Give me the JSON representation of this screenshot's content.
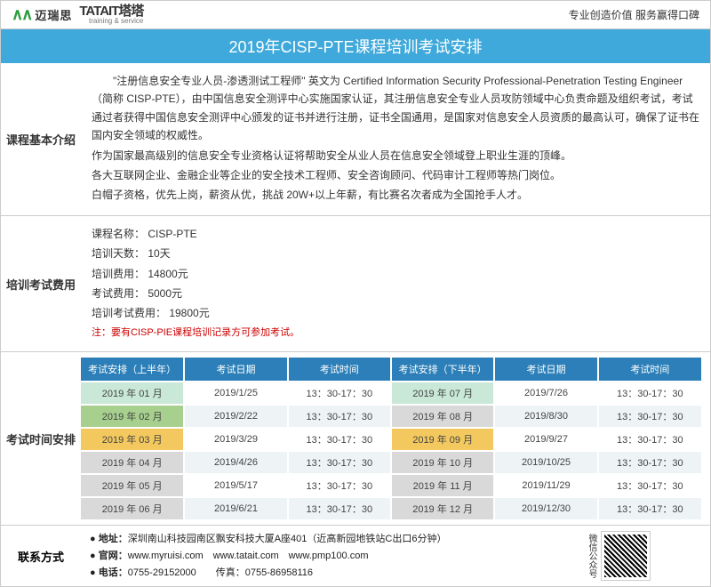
{
  "header": {
    "logo1_icon": "∧∧",
    "logo1_cn": "迈瑞思",
    "logo2_main": "TATAIT塔塔",
    "logo2_sub": "training & service",
    "slogan": "专业创造价值 服务赢得口碑"
  },
  "title": "2019年CISP-PTE课程培训考试安排",
  "intro": {
    "label": "课程基本介绍",
    "p1": "\"注册信息安全专业人员-渗透测试工程师\" 英文为 Certified Information Security Professional-Penetration Testing Engineer （简称 CISP-PTE），由中国信息安全测评中心实施国家认证，其注册信息安全专业人员攻防领域中心负责命题及组织考试，考试通过者获得中国信息安全测评中心颁发的证书并进行注册，证书全国通用，是国家对信息安全人员资质的最高认可，确保了证书在国内安全领域的权威性。",
    "p2": "作为国家最高级别的信息安全专业资格认证将帮助安全从业人员在信息安全领域登上职业生涯的顶峰。",
    "p3": "各大互联网企业、金融企业等企业的安全技术工程师、安全咨询顾问、代码审计工程师等热门岗位。",
    "p4": "白帽子资格，优先上岗，薪资从优，挑战 20W+以上年薪，有比赛名次者成为全国抢手人才。"
  },
  "fee": {
    "label": "培训考试费用",
    "l1": "课程名称： CISP-PTE",
    "l2": "培训天数： 10天",
    "l3": "培训费用： 14800元",
    "l4": "考试费用： 5000元",
    "l5": "培训考试费用： 19800元",
    "note": "注：要有CISP-PIE课程培训记录方可参加考试。"
  },
  "schedule": {
    "label": "考试时间安排",
    "headers": [
      "考试安排（上半年）",
      "考试日期",
      "考试时间",
      "考试安排（下半年）",
      "考试日期",
      "考试时间"
    ],
    "rows": [
      {
        "cells": [
          "2019 年 01 月",
          "2019/1/25",
          "13：30-17：30",
          "2019 年 07 月",
          "2019/7/26",
          "13：30-17：30"
        ],
        "c1": "#c9e8d8",
        "c4": "#c9e8d8"
      },
      {
        "cells": [
          "2019 年 02 月",
          "2019/2/22",
          "13：30-17：30",
          "2019 年 08 月",
          "2019/8/30",
          "13：30-17：30"
        ],
        "c1": "#a7d08f",
        "c4": "#d9d9d9"
      },
      {
        "cells": [
          "2019 年 03 月",
          "2019/3/29",
          "13：30-17：30",
          "2019 年 09 月",
          "2019/9/27",
          "13：30-17：30"
        ],
        "c1": "#f3c95f",
        "c4": "#f3c95f"
      },
      {
        "cells": [
          "2019 年 04 月",
          "2019/4/26",
          "13：30-17：30",
          "2019 年 10 月",
          "2019/10/25",
          "13：30-17：30"
        ],
        "c1": "#d9d9d9",
        "c4": "#d9d9d9"
      },
      {
        "cells": [
          "2019 年 05 月",
          "2019/5/17",
          "13：30-17：30",
          "2019 年 11 月",
          "2019/11/29",
          "13：30-17：30"
        ],
        "c1": "#d9d9d9",
        "c4": "#d9d9d9"
      },
      {
        "cells": [
          "2019 年 06 月",
          "2019/6/21",
          "13：30-17：30",
          "2019 年 12 月",
          "2019/12/30",
          "13：30-17：30"
        ],
        "c1": "#d9d9d9",
        "c4": "#d9d9d9"
      }
    ],
    "alt_bg": "#eef3f6"
  },
  "contact": {
    "label": "联系方式",
    "addr_label": "● 地址：",
    "addr": "深圳南山科技园南区飘安科技大厦A座401（近高新园地铁站C出口6分钟）",
    "web_label": "● 官网：",
    "web": "www.myruisi.com　www.tatait.com　www.pmp100.com",
    "tel_label": "● 电话：",
    "tel": "0755-29152000　　传真：0755-86958116",
    "qr_label": "微信公众号"
  }
}
